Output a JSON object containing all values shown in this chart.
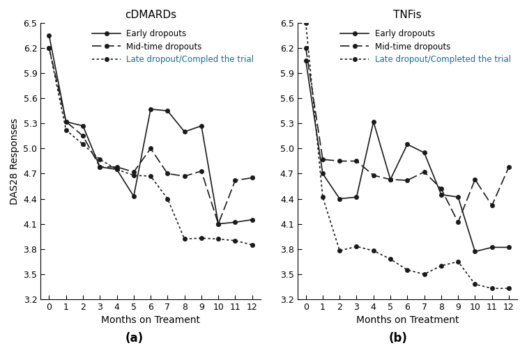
{
  "panel_a": {
    "title": "cDMARDs",
    "xlabel": "Months on Treament",
    "ylabel": "DAS28 Responses",
    "subtitle": "(a)",
    "early_dropouts": [
      6.35,
      5.32,
      5.27,
      4.78,
      4.75,
      4.43,
      5.47,
      5.45,
      5.2,
      5.27,
      4.1,
      4.12,
      4.15
    ],
    "mid_time_dropouts": [
      6.2,
      5.32,
      5.15,
      4.78,
      4.78,
      4.72,
      5.0,
      4.7,
      4.67,
      4.73,
      4.1,
      4.62,
      4.65
    ],
    "late_dropouts": [
      6.2,
      5.22,
      5.05,
      4.87,
      4.75,
      4.68,
      4.67,
      4.4,
      3.92,
      3.93,
      3.92,
      3.9,
      3.85
    ],
    "legend_early": "Early dropouts",
    "legend_mid": "Mid-time dropouts",
    "legend_late": "Late dropout/Compled the trial"
  },
  "panel_b": {
    "title": "TNFis",
    "xlabel": "Months on Treatment",
    "ylabel": "",
    "subtitle": "(b)",
    "early_dropouts": [
      6.05,
      4.7,
      4.4,
      4.42,
      5.32,
      4.63,
      5.05,
      4.95,
      4.45,
      4.42,
      3.77,
      3.82,
      3.82
    ],
    "mid_time_dropouts": [
      6.2,
      4.87,
      4.85,
      4.85,
      4.68,
      4.63,
      4.62,
      4.72,
      4.52,
      4.12,
      4.63,
      4.32,
      4.78
    ],
    "late_dropouts": [
      6.5,
      4.42,
      3.78,
      3.83,
      3.78,
      3.68,
      3.55,
      3.5,
      3.6,
      3.65,
      3.38,
      3.33,
      3.33
    ],
    "legend_early": "Early dropouts",
    "legend_mid": "Mid-time dropouts",
    "legend_late": "Late dropout/Completed the trial"
  },
  "months": [
    0,
    1,
    2,
    3,
    4,
    5,
    6,
    7,
    8,
    9,
    10,
    11,
    12
  ],
  "ylim": [
    3.2,
    6.5
  ],
  "yticks": [
    3.2,
    3.5,
    3.8,
    4.1,
    4.4,
    4.7,
    5.0,
    5.3,
    5.6,
    5.9,
    6.2,
    6.5
  ],
  "line_color": "#1a1a1a",
  "marker_color": "#1a1a1a",
  "legend_text_color_early": "#000000",
  "legend_text_color_mid": "#000000",
  "legend_text_color_late": "#1a6b8a",
  "marker_size": 4.5,
  "linewidth": 1.2,
  "fontsize_tick": 9,
  "fontsize_label": 10,
  "fontsize_title": 11
}
